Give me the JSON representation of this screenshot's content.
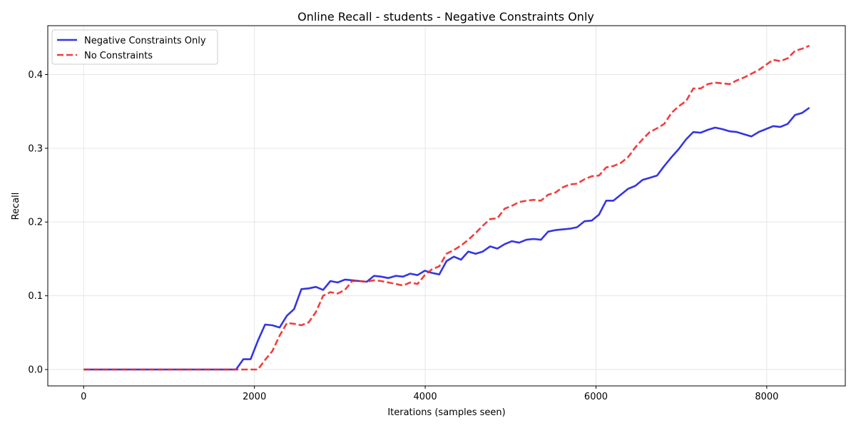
{
  "chart_data": {
    "type": "line",
    "title": "Online Recall - students - Negative Constraints Only",
    "xlabel": "Iterations (samples seen)",
    "ylabel": "Recall",
    "xlim": [
      -420,
      8920
    ],
    "ylim": [
      -0.0222,
      0.4662
    ],
    "xticks": [
      0,
      2000,
      4000,
      6000,
      8000
    ],
    "xtick_labels": [
      "0",
      "2000",
      "4000",
      "6000",
      "8000"
    ],
    "yticks": [
      0.0,
      0.1,
      0.2,
      0.3,
      0.4
    ],
    "ytick_labels": [
      "0.0",
      "0.1",
      "0.2",
      "0.3",
      "0.4"
    ],
    "grid": true,
    "legend_position": "top-left",
    "series": [
      {
        "name": "Negative Constraints Only",
        "color": "#1f1fe0",
        "style": "solid",
        "x": [
          0,
          85,
          170,
          255,
          340,
          425,
          510,
          595,
          680,
          765,
          850,
          935,
          1020,
          1105,
          1190,
          1275,
          1360,
          1445,
          1530,
          1615,
          1700,
          1785,
          1870,
          1955,
          2040,
          2125,
          2210,
          2295,
          2380,
          2465,
          2550,
          2635,
          2720,
          2805,
          2890,
          2975,
          3060,
          3145,
          3230,
          3315,
          3400,
          3485,
          3570,
          3655,
          3740,
          3825,
          3910,
          3995,
          4080,
          4165,
          4250,
          4335,
          4420,
          4505,
          4590,
          4675,
          4760,
          4845,
          4930,
          5015,
          5100,
          5185,
          5270,
          5355,
          5440,
          5525,
          5610,
          5695,
          5780,
          5865,
          5950,
          6035,
          6120,
          6205,
          6290,
          6375,
          6460,
          6545,
          6630,
          6715,
          6800,
          6885,
          6970,
          7055,
          7140,
          7225,
          7310,
          7395,
          7480,
          7565,
          7650,
          7735,
          7820,
          7905,
          7990,
          8075,
          8160,
          8245,
          8330,
          8415,
          8500
        ],
        "y": [
          0.0,
          0.0,
          0.0,
          0.0,
          0.0,
          0.0,
          0.0,
          0.0,
          0.0,
          0.0,
          0.0,
          0.0,
          0.0,
          0.0,
          0.0,
          0.0,
          0.0,
          0.0,
          0.0,
          0.0,
          0.0,
          0.0,
          0.014,
          0.014,
          0.039,
          0.061,
          0.06,
          0.057,
          0.073,
          0.082,
          0.109,
          0.11,
          0.112,
          0.108,
          0.12,
          0.118,
          0.122,
          0.121,
          0.12,
          0.119,
          0.127,
          0.126,
          0.124,
          0.127,
          0.126,
          0.13,
          0.128,
          0.134,
          0.131,
          0.129,
          0.147,
          0.153,
          0.149,
          0.16,
          0.157,
          0.16,
          0.167,
          0.164,
          0.17,
          0.174,
          0.172,
          0.176,
          0.177,
          0.176,
          0.187,
          0.189,
          0.19,
          0.191,
          0.193,
          0.201,
          0.202,
          0.21,
          0.229,
          0.229,
          0.237,
          0.245,
          0.249,
          0.257,
          0.26,
          0.263,
          0.276,
          0.288,
          0.299,
          0.312,
          0.322,
          0.321,
          0.325,
          0.328,
          0.326,
          0.323,
          0.322,
          0.319,
          0.316,
          0.322,
          0.326,
          0.33,
          0.329,
          0.333,
          0.345,
          0.348,
          0.355
        ]
      },
      {
        "name": "No Constraints",
        "color": "#f02828",
        "style": "dashed",
        "x": [
          0,
          85,
          170,
          255,
          340,
          425,
          510,
          595,
          680,
          765,
          850,
          935,
          1020,
          1105,
          1190,
          1275,
          1360,
          1445,
          1530,
          1615,
          1700,
          1785,
          1870,
          1955,
          2040,
          2125,
          2210,
          2295,
          2380,
          2465,
          2550,
          2635,
          2720,
          2805,
          2890,
          2975,
          3060,
          3145,
          3230,
          3315,
          3400,
          3485,
          3570,
          3655,
          3740,
          3825,
          3910,
          3995,
          4080,
          4165,
          4250,
          4335,
          4420,
          4505,
          4590,
          4675,
          4760,
          4845,
          4930,
          5015,
          5100,
          5185,
          5270,
          5355,
          5440,
          5525,
          5610,
          5695,
          5780,
          5865,
          5950,
          6035,
          6120,
          6205,
          6290,
          6375,
          6460,
          6545,
          6630,
          6715,
          6800,
          6885,
          6970,
          7055,
          7140,
          7225,
          7310,
          7395,
          7480,
          7565,
          7650,
          7735,
          7820,
          7905,
          7990,
          8075,
          8160,
          8245,
          8330,
          8415,
          8500
        ],
        "y": [
          0.0,
          0.0,
          0.0,
          0.0,
          0.0,
          0.0,
          0.0,
          0.0,
          0.0,
          0.0,
          0.0,
          0.0,
          0.0,
          0.0,
          0.0,
          0.0,
          0.0,
          0.0,
          0.0,
          0.0,
          0.0,
          0.0,
          0.0,
          0.0,
          0.0,
          0.013,
          0.025,
          0.046,
          0.063,
          0.062,
          0.06,
          0.064,
          0.078,
          0.1,
          0.105,
          0.103,
          0.108,
          0.12,
          0.12,
          0.119,
          0.121,
          0.12,
          0.118,
          0.116,
          0.114,
          0.118,
          0.116,
          0.128,
          0.136,
          0.14,
          0.157,
          0.162,
          0.168,
          0.176,
          0.185,
          0.195,
          0.204,
          0.205,
          0.218,
          0.222,
          0.227,
          0.229,
          0.23,
          0.229,
          0.237,
          0.24,
          0.247,
          0.251,
          0.252,
          0.258,
          0.262,
          0.263,
          0.274,
          0.276,
          0.28,
          0.288,
          0.301,
          0.312,
          0.322,
          0.327,
          0.333,
          0.348,
          0.357,
          0.364,
          0.381,
          0.381,
          0.387,
          0.389,
          0.388,
          0.387,
          0.392,
          0.396,
          0.401,
          0.406,
          0.413,
          0.42,
          0.418,
          0.422,
          0.432,
          0.435,
          0.439
        ]
      }
    ]
  }
}
